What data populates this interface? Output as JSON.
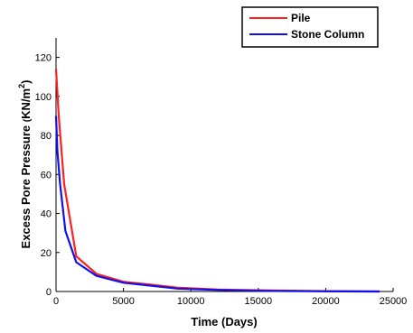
{
  "chart_data": {
    "type": "line",
    "title": "",
    "xlabel": "Time (Days)",
    "ylabel": "Excess Pore Pressure (KN/m²)",
    "ylabel_main": "Excess Pore Pressure ",
    "ylabel_unit": "KN/m",
    "ylabel_exp": "2",
    "xlim": [
      0,
      25000
    ],
    "ylim": [
      0,
      130
    ],
    "xticks": [
      0,
      5000,
      10000,
      15000,
      20000,
      25000
    ],
    "yticks": [
      0,
      20,
      40,
      60,
      80,
      100,
      120
    ],
    "grid": false,
    "legend_position": "top-right",
    "series": [
      {
        "name": "Pile",
        "color": "#ff2020",
        "x": [
          0,
          200,
          600,
          1500,
          3000,
          5000,
          7000,
          9000,
          12000,
          16000,
          20000,
          24000
        ],
        "y": [
          114,
          90,
          55,
          18,
          9,
          5,
          3.5,
          2,
          1,
          0.5,
          0.2,
          0
        ]
      },
      {
        "name": "Stone Column",
        "color": "#1010ee",
        "x": [
          0,
          100,
          300,
          700,
          1500,
          3000,
          5000,
          7000,
          9000,
          12000,
          16000,
          20000,
          24000
        ],
        "y": [
          90,
          72,
          55,
          31,
          15,
          8,
          4.5,
          3,
          1.5,
          0.8,
          0.3,
          0.1,
          0
        ]
      }
    ]
  }
}
